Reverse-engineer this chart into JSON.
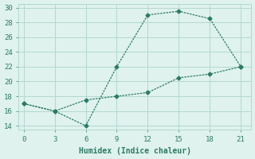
{
  "xlabel": "Humidex (Indice chaleur)",
  "line1_x": [
    0,
    3,
    6,
    9,
    12,
    15,
    18,
    21
  ],
  "line1_y": [
    17,
    16,
    14,
    22,
    29,
    29.5,
    28.5,
    22
  ],
  "line2_x": [
    0,
    3,
    6,
    9,
    12,
    15,
    18,
    21
  ],
  "line2_y": [
    17,
    16,
    17.5,
    18,
    18.5,
    20.5,
    21,
    22
  ],
  "color": "#2d7a65",
  "bg_color": "#dff2ee",
  "grid_color": "#b2d8d0",
  "xlim": [
    -0.5,
    22
  ],
  "ylim": [
    13.5,
    30.5
  ],
  "xticks": [
    0,
    3,
    6,
    9,
    12,
    15,
    18,
    21
  ],
  "yticks": [
    14,
    16,
    18,
    20,
    22,
    24,
    26,
    28,
    30
  ],
  "marker": "D",
  "markersize": 2.5,
  "linewidth": 0.9,
  "tick_fontsize": 6.5
}
